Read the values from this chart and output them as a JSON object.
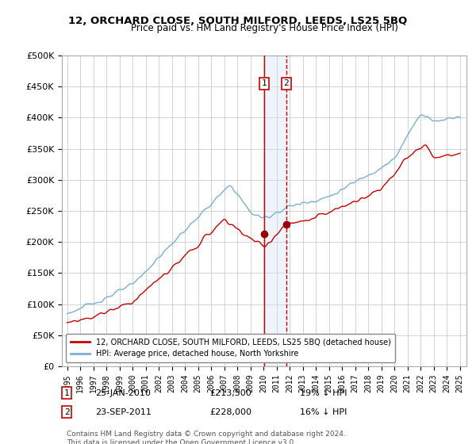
{
  "title": "12, ORCHARD CLOSE, SOUTH MILFORD, LEEDS, LS25 5BQ",
  "subtitle": "Price paid vs. HM Land Registry's House Price Index (HPI)",
  "ylim": [
    0,
    500000
  ],
  "yticks": [
    0,
    50000,
    100000,
    150000,
    200000,
    250000,
    300000,
    350000,
    400000,
    450000,
    500000
  ],
  "ytick_labels": [
    "£0",
    "£50K",
    "£100K",
    "£150K",
    "£200K",
    "£250K",
    "£300K",
    "£350K",
    "£400K",
    "£450K",
    "£500K"
  ],
  "transaction1": {
    "date": "25-JAN-2010",
    "price": 213500,
    "note": "19% ↓ HPI",
    "year": 2010.069
  },
  "transaction2": {
    "date": "23-SEP-2011",
    "price": 228000,
    "note": "16% ↓ HPI",
    "year": 2011.728
  },
  "legend_property": "12, ORCHARD CLOSE, SOUTH MILFORD, LEEDS, LS25 5BQ (detached house)",
  "legend_hpi": "HPI: Average price, detached house, North Yorkshire",
  "footnote": "Contains HM Land Registry data © Crown copyright and database right 2024.\nThis data is licensed under the Open Government Licence v3.0.",
  "property_color": "#cc0000",
  "hpi_color": "#7bafd4",
  "vline1_color": "#cc0000",
  "vline2_color": "#cc0000",
  "highlight_color": "#cce0f5",
  "marker_color": "#990000",
  "box_color": "#cc0000",
  "grid_color": "#cccccc",
  "x_start_year": 1995,
  "x_end_year": 2025
}
